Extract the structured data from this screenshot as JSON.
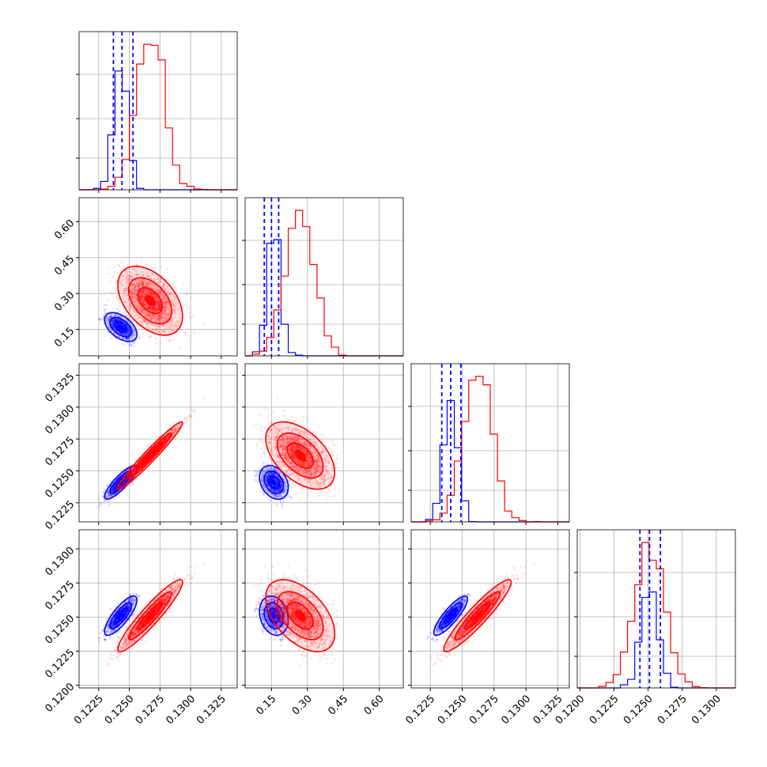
{
  "chart_data": {
    "type": "corner",
    "grid": true,
    "parameters": [
      {
        "ticks": [
          "0.1225",
          "0.1250",
          "0.1275",
          "0.1300",
          "0.1325"
        ],
        "tick_values": [
          0.1225,
          0.125,
          0.1275,
          0.13,
          0.1325
        ],
        "range": [
          0.1209,
          0.1338
        ]
      },
      {
        "ticks": [
          "0.15",
          "0.30",
          "0.45",
          "0.60"
        ],
        "tick_values": [
          0.15,
          0.3,
          0.45,
          0.6
        ],
        "range": [
          0.04,
          0.7
        ]
      },
      {
        "ticks": [
          "0.1225",
          "0.1250",
          "0.1275",
          "0.1300",
          "0.1325"
        ],
        "tick_values": [
          0.1225,
          0.125,
          0.1275,
          0.13,
          0.1325
        ],
        "range": [
          0.121,
          0.1334
        ]
      },
      {
        "ticks": [
          "0.1200",
          "0.1225",
          "0.1250",
          "0.1275",
          "0.1300"
        ],
        "tick_values": [
          0.12,
          0.1225,
          0.125,
          0.1275,
          0.13
        ],
        "range": [
          0.1198,
          0.1314
        ]
      }
    ],
    "series": [
      {
        "color": "#0000ff",
        "mean": [
          0.1243,
          0.16,
          0.1241,
          0.1251
        ],
        "sd": [
          0.00055,
          0.025,
          0.00055,
          0.0006
        ],
        "quantiles": [
          [
            0.1237,
            0.1244,
            0.1253
          ],
          [
            0.12,
            0.15,
            0.18
          ],
          [
            0.1234,
            0.1241,
            0.1249
          ],
          [
            0.1244,
            0.1251,
            0.1259
          ]
        ],
        "corr": [
          [
            1,
            -0.5,
            0.85,
            0.8
          ],
          [
            -0.5,
            1,
            -0.3,
            -0.2
          ],
          [
            0.85,
            -0.3,
            1,
            0.85
          ],
          [
            0.8,
            -0.2,
            0.85,
            1
          ]
        ]
      },
      {
        "color": "#ff0000",
        "mean": [
          0.1267,
          0.27,
          0.1262,
          0.1251
        ],
        "sd": [
          0.0011,
          0.06,
          0.0011,
          0.0011
        ],
        "corr": [
          [
            1,
            -0.45,
            0.97,
            0.93
          ],
          [
            -0.45,
            1,
            -0.5,
            -0.5
          ],
          [
            0.97,
            -0.5,
            1,
            0.93
          ],
          [
            0.93,
            -0.5,
            0.93,
            1
          ]
        ]
      }
    ]
  }
}
